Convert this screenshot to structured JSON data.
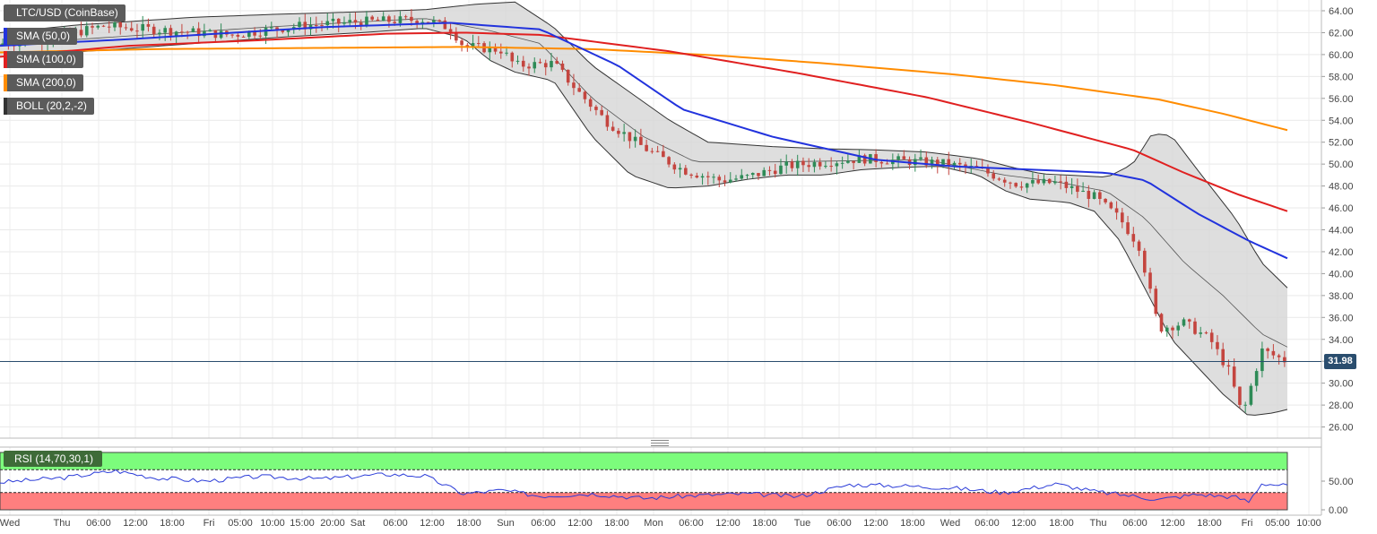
{
  "legend": {
    "symbol": "LTC/USD (CoinBase)",
    "sma50": "SMA (50,0)",
    "sma100": "SMA (100,0)",
    "sma200": "SMA (200,0)",
    "boll": "BOLL (20,2,-2)"
  },
  "rsi_label": "RSI (14,70,30,1)",
  "last_price": "31.98",
  "colors": {
    "up": "#2e8b57",
    "down": "#c4453f",
    "sma50": "#2233dd",
    "sma100": "#e02020",
    "sma200": "#ff8c00",
    "boll_fill": "#d6d6d6",
    "rsi_upper": "#7cfc7c",
    "rsi_lower": "#ff7f7f",
    "rsi_line": "#2a3bd8",
    "last_price_line": "#2a4d6e"
  },
  "chart_data": [
    {
      "type": "candlestick",
      "title": "LTC/USD (CoinBase)",
      "x_tick_labels": [
        "Wed",
        "Thu",
        "06:00",
        "12:00",
        "18:00",
        "Fri",
        "05:00",
        "10:00",
        "15:00",
        "20:00",
        "Sat",
        "06:00",
        "12:00",
        "18:00",
        "Sun",
        "06:00",
        "12:00",
        "18:00",
        "Mon",
        "06:00",
        "12:00",
        "18:00",
        "Tue",
        "06:00",
        "12:00",
        "18:00",
        "Wed",
        "06:00",
        "12:00",
        "18:00",
        "Thu",
        "06:00",
        "12:00",
        "18:00",
        "Fri",
        "05:00",
        "10:00"
      ],
      "y_tick_labels": [
        "64.00",
        "62.00",
        "60.00",
        "58.00",
        "56.00",
        "54.00",
        "52.00",
        "50.00",
        "48.00",
        "46.00",
        "44.00",
        "42.00",
        "40.00",
        "38.00",
        "36.00",
        "34.00",
        "32.00",
        "30.00",
        "28.00",
        "26.00"
      ],
      "ylim": [
        25,
        65
      ],
      "last_price": 31.98,
      "close_path": [
        [
          0,
          61.0
        ],
        [
          0.04,
          61.5
        ],
        [
          0.08,
          62.6
        ],
        [
          0.13,
          62.2
        ],
        [
          0.18,
          61.8
        ],
        [
          0.23,
          62.6
        ],
        [
          0.28,
          63.0
        ],
        [
          0.33,
          63.2
        ],
        [
          0.35,
          62.4
        ],
        [
          0.36,
          60.8
        ],
        [
          0.39,
          60.4
        ],
        [
          0.4,
          59.0
        ],
        [
          0.43,
          59.2
        ],
        [
          0.45,
          56.5
        ],
        [
          0.47,
          54.0
        ],
        [
          0.5,
          51.5
        ],
        [
          0.53,
          49.5
        ],
        [
          0.56,
          48.5
        ],
        [
          0.58,
          48.8
        ],
        [
          0.61,
          49.8
        ],
        [
          0.64,
          50.2
        ],
        [
          0.67,
          50.5
        ],
        [
          0.7,
          50.3
        ],
        [
          0.73,
          50.1
        ],
        [
          0.76,
          49.5
        ],
        [
          0.79,
          48.2
        ],
        [
          0.82,
          48.3
        ],
        [
          0.85,
          47.0
        ],
        [
          0.87,
          45.0
        ],
        [
          0.885,
          42.5
        ],
        [
          0.9,
          35.0
        ],
        [
          0.92,
          35.5
        ],
        [
          0.94,
          34.0
        ],
        [
          0.955,
          31.0
        ],
        [
          0.965,
          27.0
        ],
        [
          0.98,
          33.0
        ],
        [
          1.0,
          31.98
        ]
      ],
      "sma50": [
        [
          0,
          60.8
        ],
        [
          0.1,
          61.4
        ],
        [
          0.25,
          62.5
        ],
        [
          0.35,
          62.9
        ],
        [
          0.42,
          62.3
        ],
        [
          0.48,
          59.0
        ],
        [
          0.53,
          55.0
        ],
        [
          0.6,
          52.5
        ],
        [
          0.68,
          50.4
        ],
        [
          0.74,
          49.8
        ],
        [
          0.82,
          49.4
        ],
        [
          0.86,
          49.2
        ],
        [
          0.89,
          48.5
        ],
        [
          0.93,
          45.5
        ],
        [
          0.97,
          43.0
        ],
        [
          1.0,
          41.4
        ]
      ],
      "sma100": [
        [
          0,
          59.8
        ],
        [
          0.1,
          60.8
        ],
        [
          0.2,
          61.3
        ],
        [
          0.3,
          61.9
        ],
        [
          0.36,
          62.0
        ],
        [
          0.42,
          61.8
        ],
        [
          0.52,
          60.3
        ],
        [
          0.62,
          58.3
        ],
        [
          0.72,
          56.1
        ],
        [
          0.8,
          53.8
        ],
        [
          0.88,
          51.3
        ],
        [
          0.92,
          49.2
        ],
        [
          0.96,
          47.3
        ],
        [
          1.0,
          45.7
        ]
      ],
      "sma200": [
        [
          0,
          60.2
        ],
        [
          0.12,
          60.5
        ],
        [
          0.24,
          60.6
        ],
        [
          0.36,
          60.7
        ],
        [
          0.46,
          60.5
        ],
        [
          0.56,
          59.9
        ],
        [
          0.64,
          59.2
        ],
        [
          0.74,
          58.2
        ],
        [
          0.82,
          57.2
        ],
        [
          0.9,
          55.9
        ],
        [
          0.95,
          54.6
        ],
        [
          1.0,
          53.1
        ]
      ],
      "boll_upper": [
        [
          0,
          62.0
        ],
        [
          0.06,
          62.7
        ],
        [
          0.15,
          63.4
        ],
        [
          0.22,
          63.7
        ],
        [
          0.28,
          63.9
        ],
        [
          0.33,
          64.1
        ],
        [
          0.37,
          64.6
        ],
        [
          0.4,
          64.8
        ],
        [
          0.43,
          62.5
        ],
        [
          0.46,
          59.0
        ],
        [
          0.49,
          56.5
        ],
        [
          0.52,
          54.0
        ],
        [
          0.55,
          52.0
        ],
        [
          0.6,
          51.6
        ],
        [
          0.64,
          51.4
        ],
        [
          0.68,
          51.3
        ],
        [
          0.72,
          51.1
        ],
        [
          0.76,
          50.5
        ],
        [
          0.79,
          49.6
        ],
        [
          0.81,
          49.1
        ],
        [
          0.83,
          49.0
        ],
        [
          0.86,
          48.8
        ],
        [
          0.88,
          50.0
        ],
        [
          0.895,
          52.8
        ],
        [
          0.91,
          52.6
        ],
        [
          0.93,
          49.5
        ],
        [
          0.96,
          45.0
        ],
        [
          0.98,
          41.0
        ],
        [
          1.0,
          38.7
        ]
      ],
      "boll_lower": [
        [
          0,
          59.8
        ],
        [
          0.08,
          60.4
        ],
        [
          0.15,
          61.0
        ],
        [
          0.22,
          61.6
        ],
        [
          0.28,
          62.0
        ],
        [
          0.33,
          62.4
        ],
        [
          0.36,
          61.5
        ],
        [
          0.38,
          59.5
        ],
        [
          0.4,
          58.4
        ],
        [
          0.43,
          57.6
        ],
        [
          0.46,
          52.5
        ],
        [
          0.49,
          49.0
        ],
        [
          0.52,
          47.8
        ],
        [
          0.55,
          48.0
        ],
        [
          0.58,
          48.6
        ],
        [
          0.61,
          49.0
        ],
        [
          0.64,
          49.0
        ],
        [
          0.67,
          49.5
        ],
        [
          0.7,
          49.7
        ],
        [
          0.73,
          49.8
        ],
        [
          0.76,
          49.0
        ],
        [
          0.78,
          47.6
        ],
        [
          0.8,
          46.8
        ],
        [
          0.83,
          46.5
        ],
        [
          0.85,
          45.7
        ],
        [
          0.87,
          43.0
        ],
        [
          0.89,
          38.5
        ],
        [
          0.91,
          34.0
        ],
        [
          0.93,
          31.5
        ],
        [
          0.95,
          29.0
        ],
        [
          0.97,
          27.0
        ],
        [
          0.99,
          27.3
        ],
        [
          1.0,
          27.6
        ]
      ],
      "boll_middle": [
        [
          0,
          60.9
        ],
        [
          0.1,
          61.7
        ],
        [
          0.22,
          62.6
        ],
        [
          0.33,
          63.3
        ],
        [
          0.38,
          62.2
        ],
        [
          0.42,
          61.0
        ],
        [
          0.46,
          56.0
        ],
        [
          0.5,
          52.5
        ],
        [
          0.54,
          50.2
        ],
        [
          0.6,
          50.2
        ],
        [
          0.66,
          50.3
        ],
        [
          0.72,
          50.4
        ],
        [
          0.78,
          49.0
        ],
        [
          0.82,
          48.4
        ],
        [
          0.86,
          47.5
        ],
        [
          0.89,
          45.0
        ],
        [
          0.92,
          41.0
        ],
        [
          0.95,
          38.0
        ],
        [
          0.98,
          34.5
        ],
        [
          1.0,
          33.3
        ]
      ]
    },
    {
      "type": "line",
      "title": "RSI (14,70,30,1)",
      "y_tick_labels": [
        "50.00",
        "0.00"
      ],
      "ylim": [
        0,
        100
      ],
      "upper_band": 70,
      "lower_band": 30,
      "rsi_path": [
        [
          0,
          48
        ],
        [
          0.05,
          56
        ],
        [
          0.09,
          68
        ],
        [
          0.12,
          56
        ],
        [
          0.16,
          50
        ],
        [
          0.2,
          58
        ],
        [
          0.25,
          54
        ],
        [
          0.3,
          62
        ],
        [
          0.33,
          59
        ],
        [
          0.36,
          28
        ],
        [
          0.39,
          34
        ],
        [
          0.42,
          24
        ],
        [
          0.46,
          28
        ],
        [
          0.5,
          20
        ],
        [
          0.54,
          25
        ],
        [
          0.58,
          28
        ],
        [
          0.62,
          23
        ],
        [
          0.66,
          44
        ],
        [
          0.7,
          42
        ],
        [
          0.74,
          38
        ],
        [
          0.78,
          30
        ],
        [
          0.82,
          45
        ],
        [
          0.85,
          32
        ],
        [
          0.88,
          24
        ],
        [
          0.9,
          18
        ],
        [
          0.93,
          27
        ],
        [
          0.96,
          22
        ],
        [
          0.97,
          14
        ],
        [
          0.98,
          46
        ],
        [
          1.0,
          42
        ]
      ]
    }
  ]
}
